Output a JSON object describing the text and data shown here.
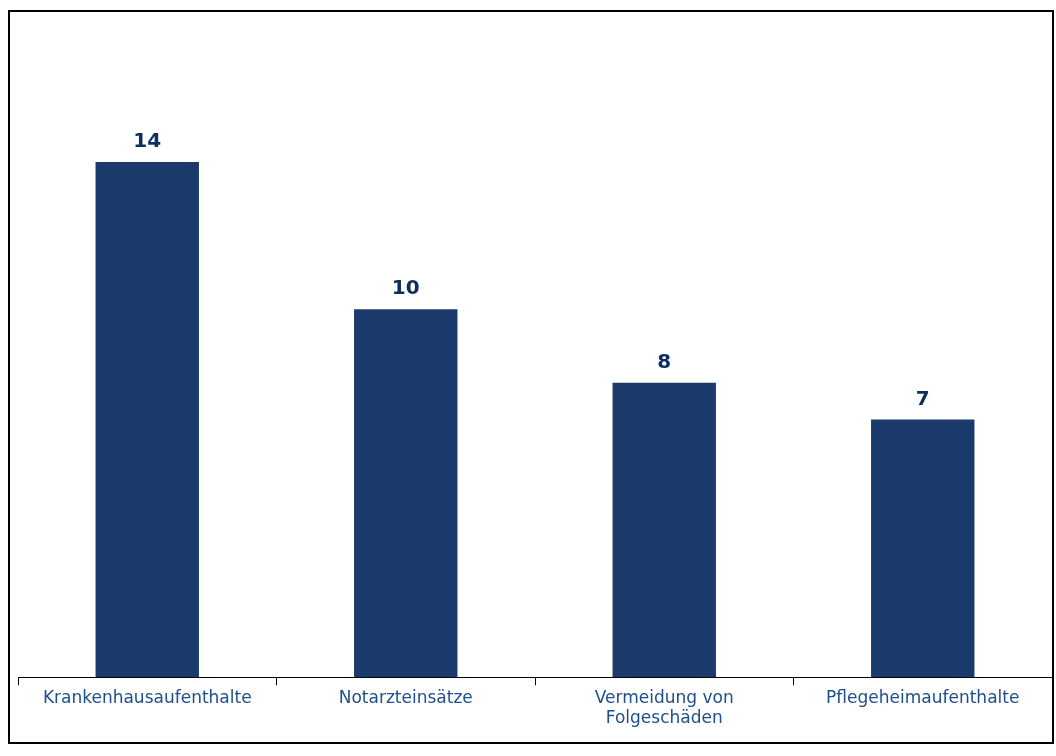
{
  "chart_data": {
    "type": "bar",
    "categories": [
      "Krankenhausaufenthalte",
      "Notarzteinsätze",
      "Vermeidung von Folgeschäden",
      "Pflegeheimaufenthalte"
    ],
    "values": [
      14,
      10,
      8,
      7
    ],
    "color": "#1a3a6c",
    "data_labels": true,
    "grid": false,
    "legend": false
  }
}
